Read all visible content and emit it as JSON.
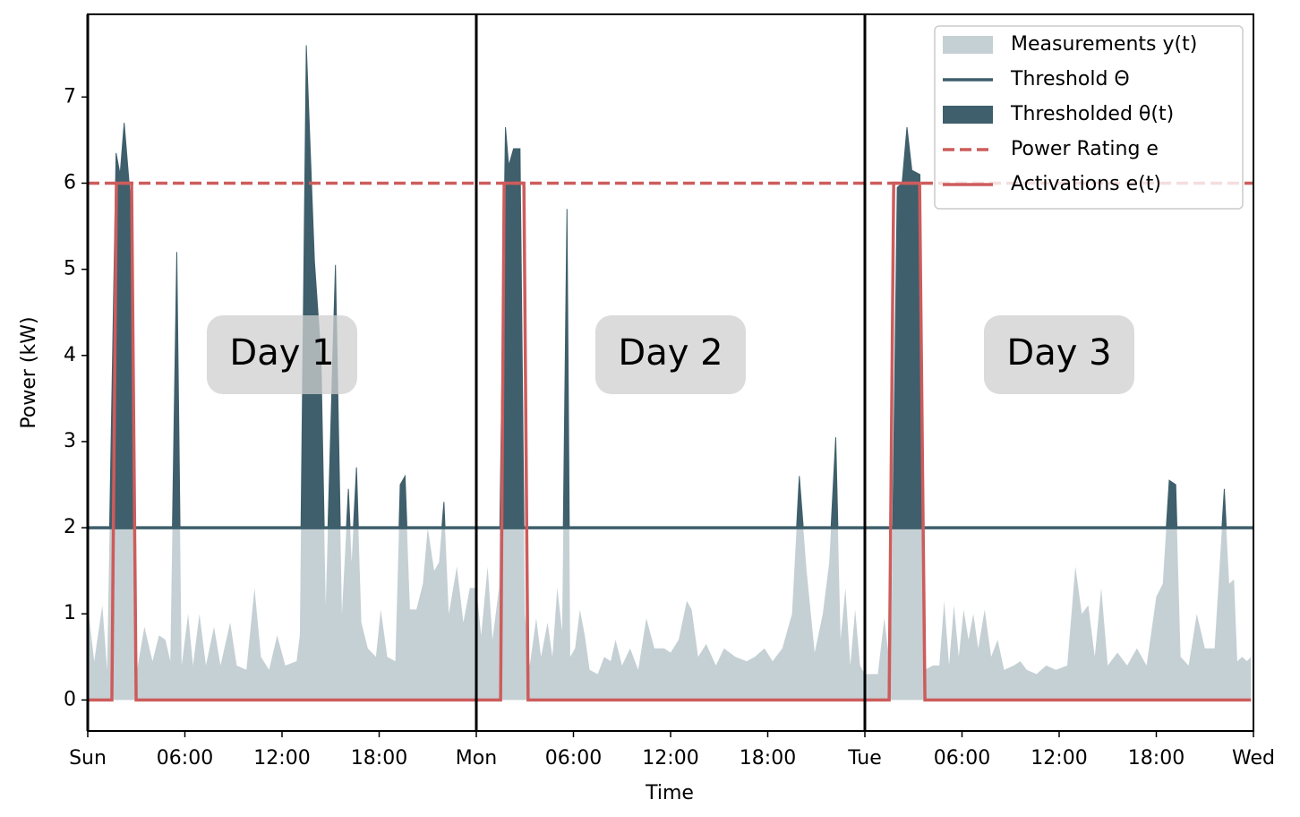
{
  "chart_data": {
    "type": "area",
    "xlabel": "Time",
    "ylabel": "Power (kW)",
    "xlim": [
      0,
      72
    ],
    "ylim": [
      -0.36,
      7.96
    ],
    "xticks": [
      {
        "value": 0,
        "label": "Sun"
      },
      {
        "value": 6,
        "label": "06:00"
      },
      {
        "value": 12,
        "label": "12:00"
      },
      {
        "value": 18,
        "label": "18:00"
      },
      {
        "value": 24,
        "label": "Mon"
      },
      {
        "value": 30,
        "label": "06:00"
      },
      {
        "value": 36,
        "label": "12:00"
      },
      {
        "value": 42,
        "label": "18:00"
      },
      {
        "value": 48,
        "label": "Tue"
      },
      {
        "value": 54,
        "label": "06:00"
      },
      {
        "value": 60,
        "label": "12:00"
      },
      {
        "value": 66,
        "label": "18:00"
      },
      {
        "value": 72,
        "label": "Wed"
      }
    ],
    "yticks": [
      0,
      1,
      2,
      3,
      4,
      5,
      6,
      7
    ],
    "annotations": [
      "Day 1",
      "Day 2",
      "Day 3"
    ],
    "legend": "upper right",
    "series": [
      {
        "name": "Measurements y(t)",
        "kind": "area",
        "color": "#c5d0d4",
        "x": [
          0,
          0.4,
          0.9,
          1.2,
          1.75,
          2.0,
          2.25,
          2.6,
          3.0,
          3.5,
          4.0,
          4.4,
          4.8,
          5.1,
          5.5,
          5.8,
          6.2,
          6.5,
          6.9,
          7.3,
          7.8,
          8.2,
          8.8,
          9.2,
          9.8,
          10.3,
          10.7,
          11.2,
          11.7,
          12.2,
          12.9,
          13.1,
          13.5,
          14.0,
          14.4,
          14.7,
          15.3,
          15.7,
          16.1,
          16.3,
          16.6,
          16.9,
          17.3,
          17.8,
          18.1,
          18.5,
          19.0,
          19.3,
          19.6,
          19.9,
          20.3,
          20.7,
          21.0,
          21.4,
          21.7,
          22.0,
          22.3,
          22.8,
          23.2,
          23.6,
          24.0,
          24.3,
          24.7,
          25.0,
          25.4,
          25.8,
          26.0,
          26.3,
          26.7,
          27.0,
          27.3,
          27.7,
          28.0,
          28.4,
          28.7,
          29.0,
          29.3,
          29.6,
          29.8,
          30.1,
          30.4,
          30.7,
          31.0,
          31.5,
          31.9,
          32.3,
          32.6,
          33.0,
          33.5,
          34.0,
          34.5,
          35.0,
          35.6,
          36.0,
          36.5,
          37.0,
          37.3,
          37.7,
          38.2,
          38.8,
          39.3,
          40.0,
          40.7,
          41.2,
          41.8,
          42.3,
          42.9,
          43.5,
          43.95,
          44.4,
          44.9,
          45.4,
          45.8,
          46.2,
          46.5,
          46.8,
          47.1,
          47.4,
          47.7,
          48.0,
          48.4,
          48.8,
          49.2,
          49.6,
          50.0,
          50.3,
          50.6,
          50.9,
          51.4,
          51.7,
          52.2,
          52.6,
          52.9,
          53.2,
          53.5,
          53.8,
          54.1,
          54.4,
          54.7,
          55.0,
          55.4,
          55.8,
          56.2,
          56.6,
          57.2,
          57.6,
          58.0,
          58.6,
          59.2,
          59.8,
          60.5,
          61.0,
          61.4,
          61.8,
          62.2,
          62.6,
          63.0,
          63.6,
          64.2,
          64.8,
          65.4,
          66.0,
          66.4,
          66.8,
          67.2,
          67.5,
          68.0,
          68.5,
          69.0,
          69.6,
          70.2,
          70.5,
          70.8,
          71.0,
          71.3,
          71.6,
          71.85
        ],
        "values": [
          1.1,
          0.45,
          1.1,
          0.35,
          6.35,
          6.1,
          6.7,
          5.9,
          0.3,
          0.85,
          0.45,
          0.75,
          0.7,
          0.45,
          5.2,
          0.4,
          1.0,
          0.4,
          1.0,
          0.4,
          0.85,
          0.4,
          0.9,
          0.4,
          0.35,
          1.3,
          0.5,
          0.35,
          0.75,
          0.4,
          0.45,
          0.75,
          7.6,
          5.1,
          4.0,
          1.1,
          5.05,
          1.0,
          2.45,
          1.6,
          2.7,
          0.9,
          0.6,
          0.5,
          1.05,
          0.5,
          0.45,
          2.5,
          2.6,
          1.05,
          1.05,
          1.35,
          2.0,
          1.5,
          1.6,
          2.3,
          1.0,
          1.55,
          0.9,
          1.3,
          1.3,
          0.75,
          1.55,
          0.7,
          1.3,
          6.65,
          6.2,
          6.4,
          6.4,
          1.0,
          0.4,
          0.95,
          0.5,
          0.9,
          0.5,
          1.3,
          0.8,
          5.7,
          0.5,
          0.6,
          1.05,
          0.75,
          0.35,
          0.3,
          0.5,
          0.45,
          0.7,
          0.4,
          0.6,
          0.35,
          0.95,
          0.6,
          0.6,
          0.55,
          0.7,
          1.15,
          1.05,
          0.5,
          0.65,
          0.4,
          0.6,
          0.5,
          0.45,
          0.5,
          0.6,
          0.45,
          0.6,
          1.0,
          2.6,
          1.5,
          0.55,
          1.0,
          1.6,
          3.05,
          0.7,
          1.3,
          0.4,
          1.05,
          0.4,
          0.3,
          0.3,
          0.3,
          0.95,
          0.3,
          5.95,
          6.0,
          6.65,
          6.15,
          6.1,
          0.35,
          0.4,
          0.4,
          1.15,
          0.4,
          1.1,
          0.5,
          1.05,
          0.7,
          1.0,
          0.6,
          1.05,
          0.5,
          0.7,
          0.35,
          0.4,
          0.45,
          0.35,
          0.3,
          0.4,
          0.35,
          0.4,
          1.55,
          1.0,
          1.1,
          0.5,
          1.3,
          0.4,
          0.55,
          0.4,
          0.6,
          0.4,
          1.2,
          1.35,
          2.55,
          2.5,
          0.5,
          0.4,
          1.0,
          0.6,
          0.6,
          2.45,
          1.35,
          1.4,
          0.45,
          0.5,
          0.45,
          0.5
        ]
      },
      {
        "name": "Threshold Θ",
        "kind": "hline",
        "color": "#3e5f6b",
        "values": [
          2
        ]
      },
      {
        "name": "Thresholded θ(t)",
        "kind": "above",
        "color": "#3e5f6b"
      },
      {
        "name": "Power Rating e",
        "kind": "hline",
        "dashed": true,
        "color": "#cd5c5c",
        "values": [
          6
        ]
      },
      {
        "name": "Activations e(t)",
        "kind": "line",
        "color": "#cd5c5c",
        "x": [
          0,
          1.49,
          1.77,
          2.71,
          2.99,
          25.5,
          25.72,
          26.94,
          27.2,
          49.5,
          49.78,
          51.38,
          51.71,
          71.85
        ],
        "values": [
          0,
          0,
          6,
          6,
          0,
          0,
          6,
          6,
          0,
          0,
          6,
          6,
          0,
          0
        ]
      }
    ]
  }
}
